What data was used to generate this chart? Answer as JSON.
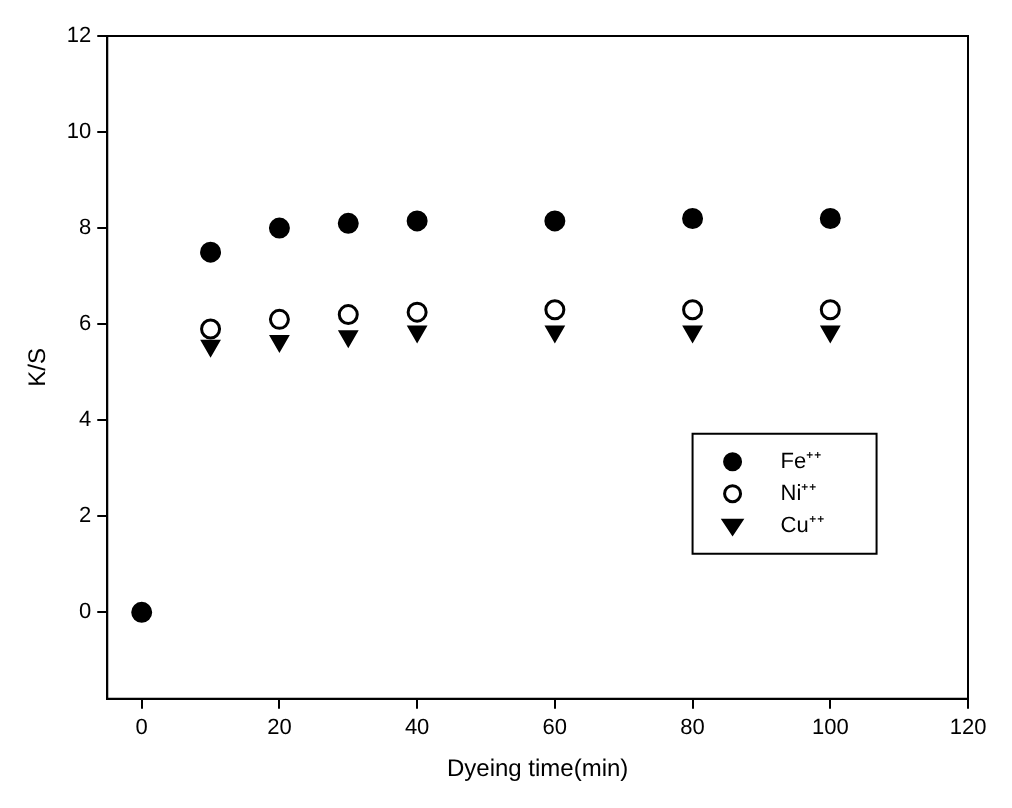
{
  "chart_data": {
    "type": "scatter",
    "xlabel": "Dyeing time(min)",
    "ylabel": "K/S",
    "x": [
      0,
      10,
      20,
      30,
      40,
      60,
      80,
      100
    ],
    "series": [
      {
        "name": "Fe⁺⁺",
        "color": "#000000",
        "marker": "circle",
        "values": [
          0,
          7.5,
          8.0,
          8.1,
          8.15,
          8.15,
          8.2,
          8.2
        ]
      },
      {
        "name": "Ni⁺⁺",
        "color": "#000000",
        "marker": "circle_open",
        "values": [
          null,
          5.9,
          6.1,
          6.2,
          6.25,
          6.3,
          6.3,
          6.3
        ]
      },
      {
        "name": "Cu⁺⁺",
        "color": "#000000",
        "marker": "triangle_down",
        "values": [
          null,
          5.55,
          5.65,
          5.75,
          5.85,
          5.85,
          5.85,
          5.85
        ]
      }
    ],
    "xlim": [
      -5,
      120
    ],
    "xticks": [
      0,
      20,
      40,
      60,
      80,
      100,
      120
    ],
    "ylim": [
      -1.8,
      12
    ],
    "yticks": [
      0,
      2,
      4,
      6,
      8,
      10,
      12
    ],
    "grid": false,
    "legend": "bottom right"
  }
}
